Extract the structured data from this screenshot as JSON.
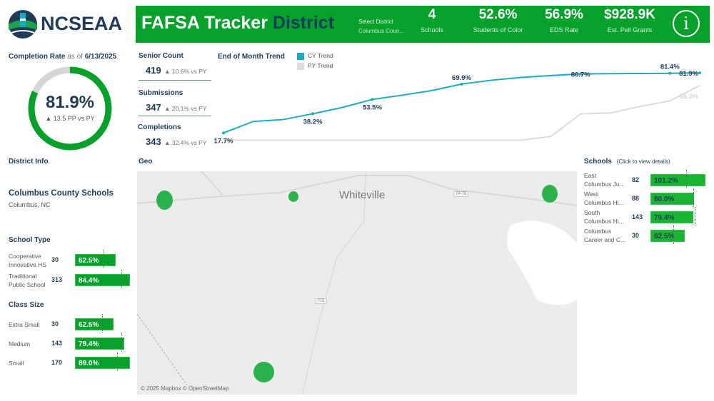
{
  "logo": {
    "text": "NCSEAA"
  },
  "header": {
    "title": "FAFSA Tracker",
    "title_accent": "District",
    "select_label": "Select District",
    "select_value": "Columbus Coun...",
    "kpis": [
      {
        "value": "4",
        "label": "Schools"
      },
      {
        "value": "52.6%",
        "label": "Students of Color"
      },
      {
        "value": "56.9%",
        "label": "EDS Rate"
      },
      {
        "value": "$928.9K",
        "label": "Est. Pell Grants"
      }
    ],
    "info_icon": "info-icon"
  },
  "completion": {
    "title": "Completion Rate",
    "as_of_prefix": "as of",
    "date": "6/13/2025",
    "value": "81.9%",
    "fraction": 0.819,
    "change": "▲ 13.5 PP vs PY"
  },
  "stats": [
    {
      "title": "Senior Count",
      "value": "419",
      "change": "▲ 10.6% vs PY"
    },
    {
      "title": "Submissions",
      "value": "347",
      "change": "▲ 20.1% vs PY"
    },
    {
      "title": "Completions",
      "value": "343",
      "change": "▲ 32.4% vs PY"
    }
  ],
  "trend": {
    "title": "End of Month Trend",
    "legend": [
      "CY Trend",
      "PY Trend"
    ],
    "colors": {
      "cy": "#1aadc2",
      "py": "#dcdcdc"
    },
    "chart_data": {
      "type": "line",
      "series": [
        {
          "name": "CY Trend",
          "values": [
            17.7,
            30,
            32,
            38.2,
            45,
            53.5,
            58,
            63,
            69.9,
            74,
            77,
            79,
            80.7,
            81,
            81.2,
            81.4,
            81.9
          ],
          "labels": {
            "0": "17.7%",
            "3": "38.2%",
            "5": "53.5%",
            "8": "69.9%",
            "12": "80.7%",
            "15": "81.4%",
            "16": "81.9%"
          }
        },
        {
          "name": "PY Trend",
          "values": [
            10,
            10,
            10,
            10,
            10,
            10,
            10,
            10,
            10,
            10,
            10,
            14,
            38,
            39,
            46,
            52,
            68.3
          ],
          "labels": {
            "16": "68.3%"
          }
        }
      ],
      "ylim": [
        5,
        85
      ]
    }
  },
  "district": {
    "section": "District Info",
    "name": "Columbus County Schools",
    "location": "Columbus, NC"
  },
  "school_type": {
    "title": "School Type",
    "max": 84.4,
    "rows": [
      {
        "label": "Cooperative Innovative HS",
        "count": "30",
        "value": 62.5,
        "text": "62.5%",
        "py": 43.8
      },
      {
        "label": "Traditional Public School",
        "count": "313",
        "value": 84.4,
        "text": "84.4%",
        "py": 71.3
      }
    ]
  },
  "class_size": {
    "title": "Class Size",
    "max": 89,
    "rows": [
      {
        "label": "Extra Small",
        "count": "30",
        "value": 62.5,
        "text": "62.5%",
        "py": 43.9
      },
      {
        "label": "Medium",
        "count": "143",
        "value": 79.4,
        "text": "79.4%",
        "py": 75.2
      },
      {
        "label": "Small",
        "count": "170",
        "value": 89.0,
        "text": "89.0%",
        "py": 68.2
      }
    ]
  },
  "geo": {
    "title": "Geo",
    "city": "Whiteville",
    "road1": "74-76",
    "road2": "701",
    "attribution": "© 2025 Mapbox © OpenStreetMap"
  },
  "schools": {
    "title": "Schools",
    "hint": "(Click to view details)",
    "max": 101.2,
    "rows": [
      {
        "label1": "East",
        "label2": "Columbus Ju...",
        "count": "82",
        "value": 101.2,
        "text": "101.2%",
        "py": 65.7
      },
      {
        "label1": "West",
        "label2": "Columbus Hi...",
        "count": "88",
        "value": 80.0,
        "text": "80.0%",
        "py": 78.9
      },
      {
        "label1": "South",
        "label2": "Columbus Hi...",
        "count": "143",
        "value": 79.4,
        "text": "79.4%",
        "py": 81.5
      },
      {
        "label1": "Columbus",
        "label2": "Career and C...",
        "count": "30",
        "value": 62.5,
        "text": "62.5%",
        "py": 42
      }
    ]
  }
}
